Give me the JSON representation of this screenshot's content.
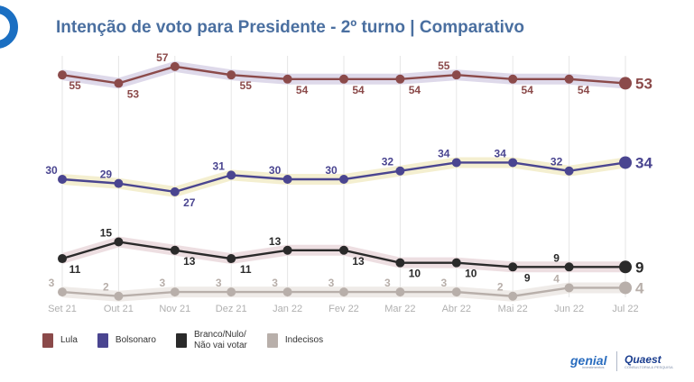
{
  "title": "Intenção de voto para Presidente - 2º turno | Comparativo",
  "colors": {
    "title": "#4a6fa0",
    "logo": "#1b6fc2"
  },
  "chart_data": {
    "type": "line",
    "x": [
      "Set 21",
      "Out 21",
      "Nov 21",
      "Dez 21",
      "Jan 22",
      "Fev 22",
      "Mar 22",
      "Abr 22",
      "Mai 22",
      "Jun 22",
      "Jul 22"
    ],
    "ylim": [
      0,
      60
    ],
    "grid": "vertical",
    "legend_position": "bottom-left",
    "series": [
      {
        "name": "Lula",
        "color": "#8b4a4a",
        "band": "#d8d2e6",
        "values": [
          55,
          53,
          57,
          55,
          54,
          54,
          54,
          55,
          54,
          54,
          53
        ]
      },
      {
        "name": "Bolsonaro",
        "color": "#4a4590",
        "band": "#f2ecc8",
        "values": [
          30,
          29,
          27,
          31,
          30,
          30,
          32,
          34,
          34,
          32,
          34
        ]
      },
      {
        "name": "Branco/Nulo/\nNão vai votar",
        "color": "#2a2a2a",
        "band": "#ead8dc",
        "values": [
          11,
          15,
          13,
          11,
          13,
          13,
          10,
          10,
          9,
          9,
          9
        ]
      },
      {
        "name": "Indecisos",
        "color": "#b8afaa",
        "band": "#ece8e4",
        "values": [
          3,
          2,
          3,
          3,
          3,
          3,
          3,
          3,
          2,
          4,
          4
        ]
      }
    ]
  },
  "brands": {
    "genial": "genial",
    "genial_sub": "investimentos",
    "quaest": "Quaest",
    "quaest_sub": "CONSULTORIA & PESQUISA"
  }
}
